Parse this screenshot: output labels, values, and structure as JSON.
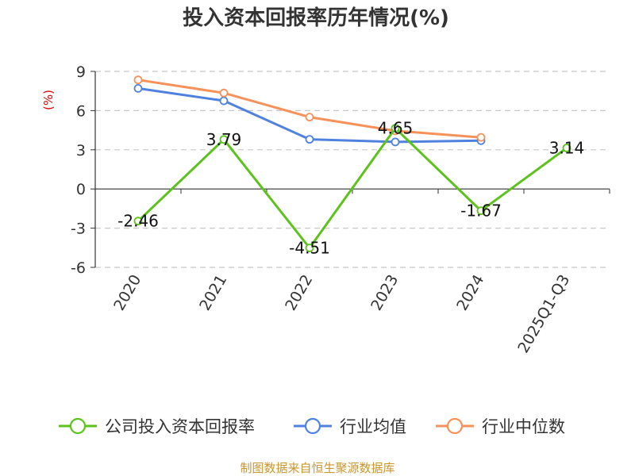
{
  "chart_data": {
    "type": "line",
    "title": "投入资本回报率历年情况(%)",
    "ylabel": "(%)",
    "categories": [
      "2020",
      "2021",
      "2022",
      "2023",
      "2024",
      "2025Q1-Q3"
    ],
    "ylim": [
      -6,
      9
    ],
    "yticks": [
      -6,
      -3,
      0,
      3,
      6,
      9
    ],
    "grid": true,
    "legend_position": "bottom",
    "series": [
      {
        "name": "公司投入资本回报率",
        "color": "#5dc21e",
        "values": [
          -2.46,
          3.79,
          -4.51,
          4.65,
          -1.67,
          3.14
        ],
        "show_labels": true
      },
      {
        "name": "行业均值",
        "color": "#4f81de",
        "values": [
          7.7,
          6.75,
          3.8,
          3.6,
          3.7,
          null
        ],
        "show_labels": false
      },
      {
        "name": "行业中位数",
        "color": "#f6915a",
        "values": [
          8.35,
          7.35,
          5.5,
          4.45,
          3.95,
          null
        ],
        "show_labels": false
      }
    ],
    "data_labels": [
      "-2.46",
      "3.79",
      "-4.51",
      "4.65",
      "-1.67",
      "3.14"
    ]
  },
  "source": "制图数据来自恒生聚源数据库"
}
